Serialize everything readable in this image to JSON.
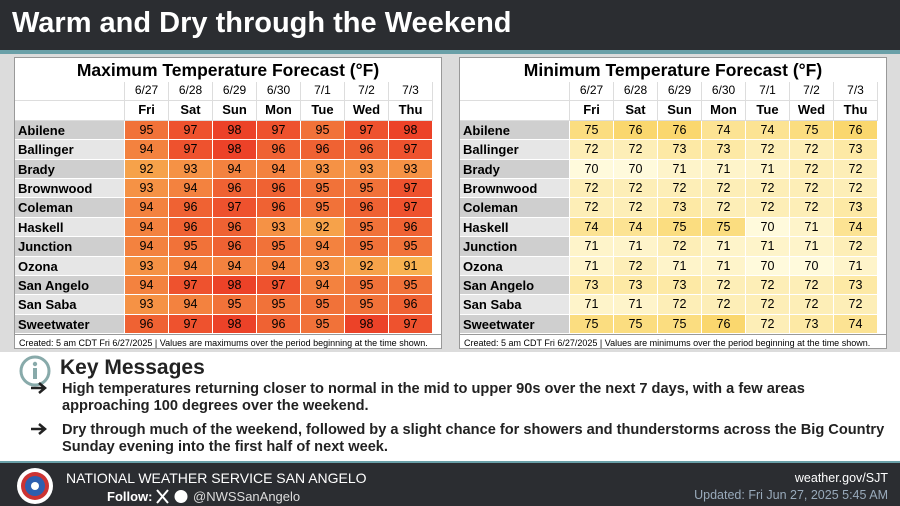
{
  "header": {
    "title": "Warm and Dry through the Weekend"
  },
  "tables": [
    {
      "title": "Maximum Temperature Forecast (°F)",
      "dates": [
        "6/27",
        "6/28",
        "6/29",
        "6/30",
        "7/1",
        "7/2",
        "7/3"
      ],
      "days": [
        "Fri",
        "Sat",
        "Sun",
        "Mon",
        "Tue",
        "Wed",
        "Thu"
      ],
      "rows": [
        [
          "Abilene",
          95,
          97,
          98,
          97,
          95,
          97,
          98
        ],
        [
          "Ballinger",
          94,
          97,
          98,
          96,
          96,
          96,
          97
        ],
        [
          "Brady",
          92,
          93,
          94,
          94,
          93,
          93,
          93
        ],
        [
          "Brownwood",
          93,
          94,
          96,
          96,
          95,
          95,
          97
        ],
        [
          "Coleman",
          94,
          96,
          97,
          96,
          95,
          96,
          97
        ],
        [
          "Haskell",
          94,
          96,
          96,
          93,
          92,
          95,
          96
        ],
        [
          "Junction",
          94,
          95,
          96,
          95,
          94,
          95,
          95
        ],
        [
          "Ozona",
          93,
          94,
          94,
          94,
          93,
          92,
          91
        ],
        [
          "San Angelo",
          94,
          97,
          98,
          97,
          94,
          95,
          95
        ],
        [
          "San Saba",
          93,
          94,
          95,
          95,
          95,
          95,
          96
        ],
        [
          "Sweetwater",
          96,
          97,
          98,
          96,
          95,
          98,
          97
        ]
      ],
      "note": "Created: 5 am CDT Fri 6/27/2025  |  Values are maximums over the period beginning at the time shown."
    },
    {
      "title": "Minimum Temperature Forecast (°F)",
      "dates": [
        "6/27",
        "6/28",
        "6/29",
        "6/30",
        "7/1",
        "7/2",
        "7/3"
      ],
      "days": [
        "Fri",
        "Sat",
        "Sun",
        "Mon",
        "Tue",
        "Wed",
        "Thu"
      ],
      "rows": [
        [
          "Abilene",
          75,
          76,
          76,
          74,
          74,
          75,
          76
        ],
        [
          "Ballinger",
          72,
          72,
          73,
          73,
          72,
          72,
          73
        ],
        [
          "Brady",
          70,
          70,
          71,
          71,
          71,
          72,
          72
        ],
        [
          "Brownwood",
          72,
          72,
          72,
          72,
          72,
          72,
          72
        ],
        [
          "Coleman",
          72,
          72,
          73,
          72,
          72,
          72,
          73
        ],
        [
          "Haskell",
          74,
          74,
          75,
          75,
          70,
          71,
          74
        ],
        [
          "Junction",
          71,
          71,
          72,
          71,
          71,
          71,
          72
        ],
        [
          "Ozona",
          71,
          72,
          71,
          71,
          70,
          70,
          71
        ],
        [
          "San Angelo",
          73,
          73,
          73,
          72,
          72,
          72,
          73
        ],
        [
          "San Saba",
          71,
          71,
          72,
          72,
          72,
          72,
          72
        ],
        [
          "Sweetwater",
          75,
          75,
          75,
          76,
          72,
          73,
          74
        ]
      ],
      "note": "Created: 5 am CDT Fri 6/27/2025  |  Values are minimums over the period beginning at the time shown."
    }
  ],
  "key_messages": {
    "title": "Key Messages",
    "items": [
      "High temperatures returning closer to normal in the mid to upper 90s over the next 7 days, with a few areas approaching 100 degrees over the weekend.",
      "Dry through much of the weekend, followed by a slight chance for showers and thunderstorms across the Big Country Sunday evening into the first half of next week."
    ]
  },
  "footer": {
    "office": "NATIONAL WEATHER SERVICE SAN ANGELO",
    "follow": "Follow:",
    "handle": "@NWSSanAngelo",
    "website": "weather.gov/SJT",
    "updated": "Updated: Fri Jun 27, 2025 5:45 AM"
  }
}
